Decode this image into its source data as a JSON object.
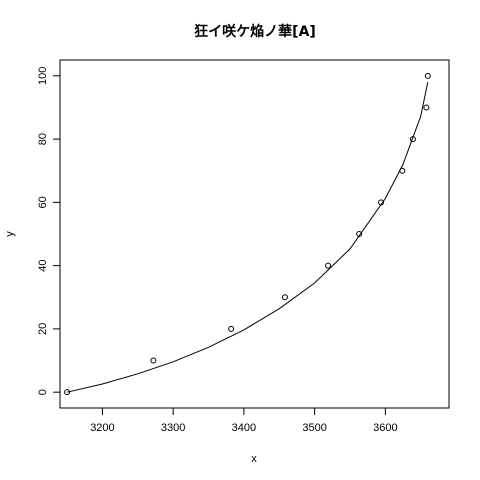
{
  "chart_data": {
    "type": "scatter",
    "title": "狂イ咲ケ焔ノ華[A]",
    "xlabel": "x",
    "ylabel": "y",
    "xlim": [
      3140,
      3690
    ],
    "ylim": [
      -5,
      105
    ],
    "x_ticks": [
      3200,
      3300,
      3400,
      3500,
      3600
    ],
    "y_ticks": [
      0,
      20,
      40,
      60,
      80,
      100
    ],
    "points": [
      {
        "x": 3150,
        "y": 0
      },
      {
        "x": 3272,
        "y": 10
      },
      {
        "x": 3382,
        "y": 20
      },
      {
        "x": 3458,
        "y": 30
      },
      {
        "x": 3519,
        "y": 40
      },
      {
        "x": 3563,
        "y": 50
      },
      {
        "x": 3594,
        "y": 60
      },
      {
        "x": 3624,
        "y": 70
      },
      {
        "x": 3639,
        "y": 80
      },
      {
        "x": 3658,
        "y": 90
      },
      {
        "x": 3660,
        "y": 100
      }
    ],
    "fit_line": {
      "x": [
        3150,
        3200,
        3250,
        3300,
        3350,
        3400,
        3450,
        3500,
        3550,
        3600,
        3625,
        3650,
        3660
      ],
      "y": [
        0,
        2.6,
        5.8,
        9.6,
        14.2,
        19.7,
        26.4,
        34.5,
        45.3,
        61.2,
        72.0,
        87.2,
        98
      ]
    },
    "grid": false,
    "legend": "none"
  }
}
